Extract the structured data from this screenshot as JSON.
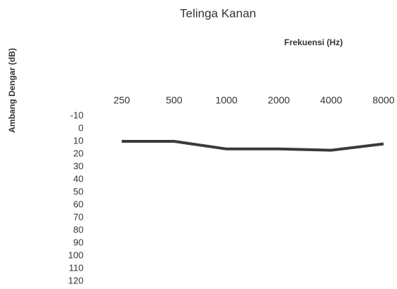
{
  "chart_data": {
    "type": "line",
    "title": "Telinga Kanan",
    "x_label": "Frekuensi (Hz)",
    "y_label": "Ambang Dengar (dB)",
    "categories": [
      "250",
      "500",
      "1000",
      "2000",
      "4000",
      "8000"
    ],
    "values": [
      10,
      10,
      16,
      16,
      17,
      12
    ],
    "color": "#3a3a3a",
    "ylim": [
      -10,
      120
    ],
    "yticks": [
      -10,
      0,
      10,
      20,
      30,
      40,
      50,
      60,
      70,
      80,
      90,
      100,
      110,
      120
    ],
    "y_inverted": true,
    "x_axis_position": "top",
    "grid": false
  }
}
